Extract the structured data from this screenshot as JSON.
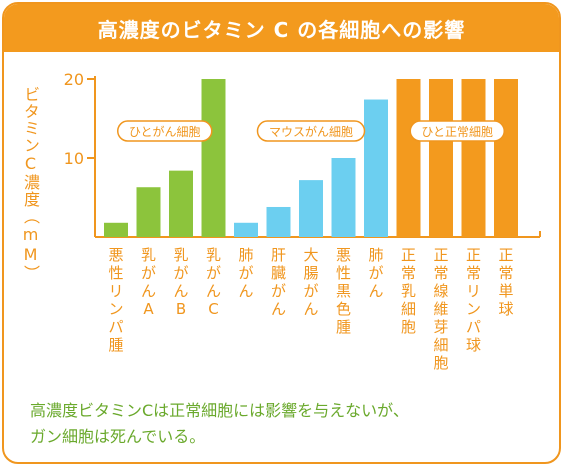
{
  "title": "高濃度のビタミン C の各細胞への影響",
  "footnote_line1": "高濃度ビタミンCは正常細胞には影響を与えないが、",
  "footnote_line2": "ガン細胞は死んでいる。",
  "colors": {
    "accent": "#f39a1e",
    "green": "#8cc43c",
    "blue": "#6ccff0",
    "orange": "#f39a1e",
    "axis": "#f0961e",
    "text": "#f0961e",
    "footnote": "#6aa92c"
  },
  "chart_data": {
    "type": "bar",
    "ylabel": "ビタミンC濃度（mM）",
    "ylim": [
      0,
      20
    ],
    "yticks": [
      10,
      20
    ],
    "grid": false,
    "groups": [
      {
        "label": "ひとがん細胞",
        "color": "green",
        "categories": [
          "悪性リンパ腫",
          "乳がんA",
          "乳がんB",
          "乳がんC"
        ],
        "values": [
          1.8,
          6.3,
          8.4,
          20
        ]
      },
      {
        "label": "マウスがん細胞",
        "color": "blue",
        "categories": [
          "肺がん",
          "肝臓がん",
          "大腸がん",
          "悪性黒色腫",
          "肺がん"
        ],
        "values": [
          1.8,
          3.8,
          7.2,
          10,
          17.4
        ]
      },
      {
        "label": "ひと正常細胞",
        "color": "orange",
        "categories": [
          "正常乳細胞",
          "正常線維芽細胞",
          "正常リンパ球",
          "正常単球"
        ],
        "values": [
          20,
          20,
          20,
          20
        ]
      }
    ]
  }
}
